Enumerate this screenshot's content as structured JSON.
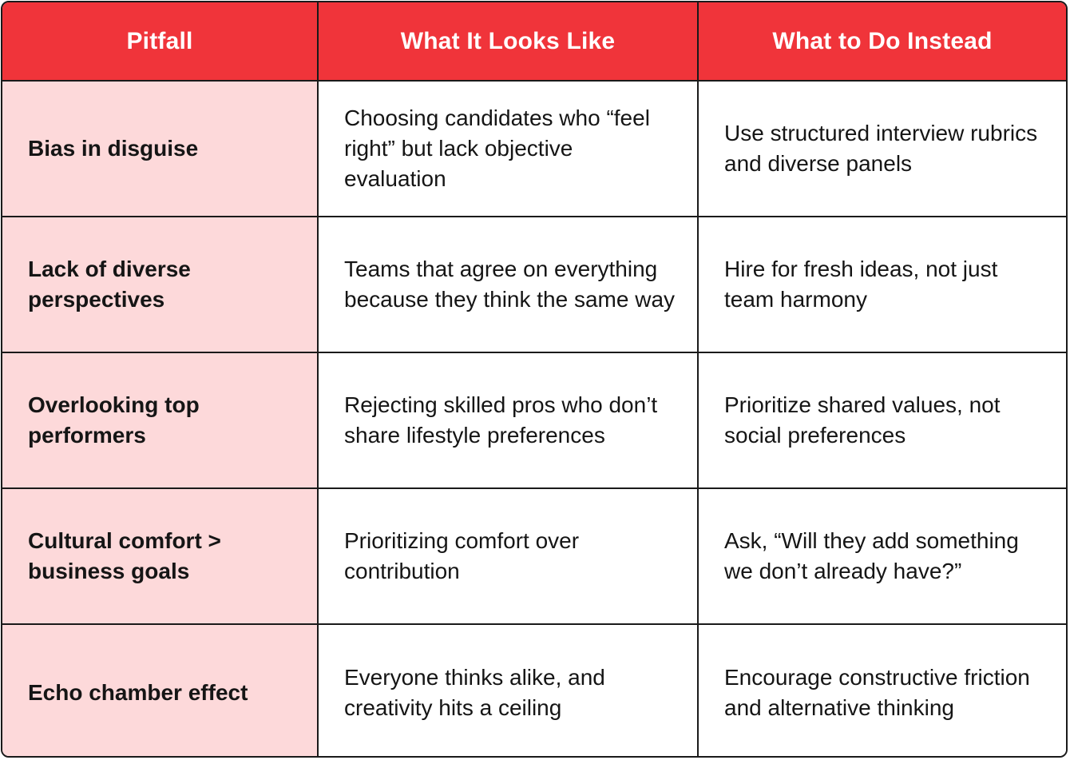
{
  "table": {
    "headers": [
      "Pitfall",
      "What It Looks Like",
      "What to Do Instead"
    ],
    "rows": [
      {
        "pitfall": "Bias in disguise",
        "looks_like": "Choosing candidates who “feel right” but lack objective evaluation",
        "instead": "Use structured interview rubrics and diverse panels"
      },
      {
        "pitfall": "Lack of diverse perspectives",
        "looks_like": "Teams that agree on everything because they think the same way",
        "instead": "Hire for fresh ideas, not just team harmony"
      },
      {
        "pitfall": "Overlooking top performers",
        "looks_like": "Rejecting skilled pros who don’t share lifestyle preferences",
        "instead": "Prioritize shared values, not social preferences"
      },
      {
        "pitfall": "Cultural comfort > business goals",
        "looks_like": "Prioritizing comfort over contribution",
        "instead": "Ask, “Will they add something we don’t already have?”"
      },
      {
        "pitfall": "Echo chamber effect",
        "looks_like": "Everyone thinks alike, and creativity hits a ceiling",
        "instead": "Encourage constructive friction and alternative thinking"
      }
    ]
  },
  "colors": {
    "header_bg": "#f0343a",
    "pitfall_bg": "#fdd9da",
    "border": "#1a1a1a"
  }
}
